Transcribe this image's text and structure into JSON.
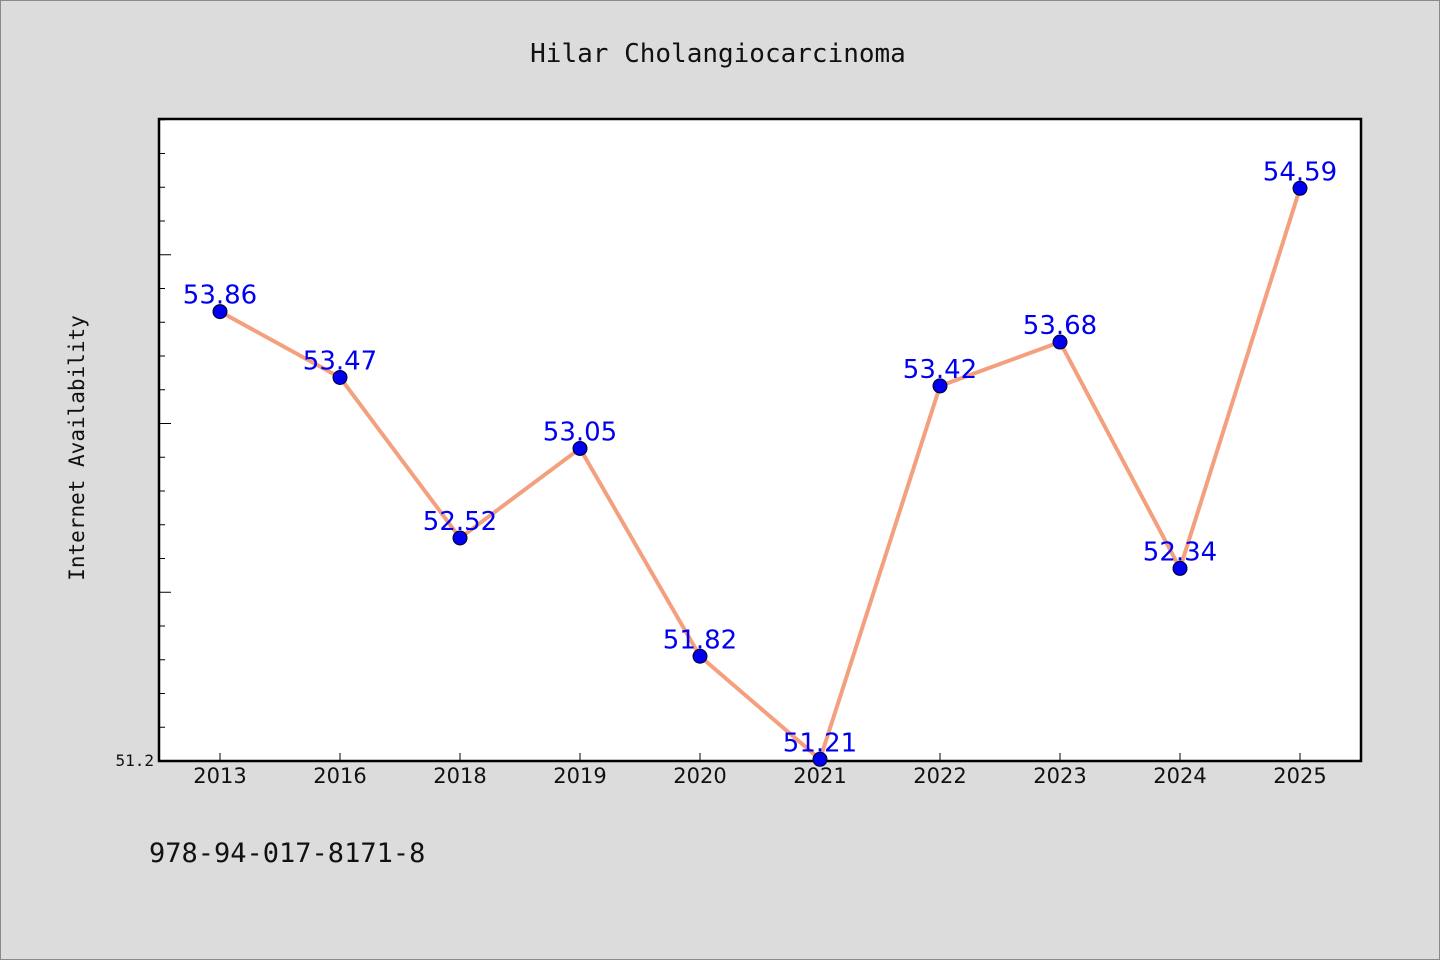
{
  "chart_data": {
    "type": "line",
    "title": "Hilar Cholangiocarcinoma",
    "xlabel": "",
    "ylabel": "Internet Availability",
    "categories": [
      "2013",
      "2016",
      "2018",
      "2019",
      "2020",
      "2021",
      "2022",
      "2023",
      "2024",
      "2025"
    ],
    "series": [
      {
        "values": [
          53.86,
          53.47,
          52.52,
          53.05,
          51.82,
          51.21,
          53.42,
          53.68,
          52.34,
          54.59
        ],
        "data_labels": [
          "53.86",
          "53.47",
          "52.52",
          "53.05",
          "51.82",
          "51.21",
          "53.42",
          "53.68",
          "52.34",
          "54.59"
        ]
      }
    ],
    "ylim": [
      51.2,
      55.0
    ],
    "yticks_labeled": [
      "51.2"
    ],
    "grid": false,
    "legend": "none",
    "colors": {
      "line": "#f4a07f",
      "marker": "#0000ee",
      "data_label": "#0000ee",
      "plot_background": "#ffffff",
      "figure_background": "#dcdcdc"
    }
  },
  "footnote": "978-94-017-8171-8"
}
